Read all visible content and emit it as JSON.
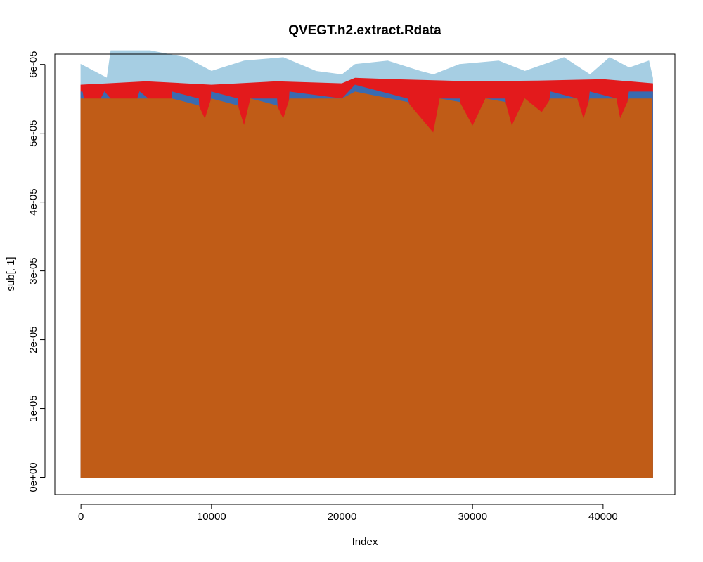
{
  "chart_data": {
    "type": "area",
    "title": "QVEGT.h2.extract.Rdata",
    "xlabel": "Index",
    "ylabel": "sub[, 1]",
    "xlim": [
      -2000,
      45500
    ],
    "ylim": [
      -2.5e-06,
      6.15e-05
    ],
    "x_ticks": [
      0,
      10000,
      20000,
      30000,
      40000
    ],
    "x_tick_labels": [
      "0",
      "10000",
      "20000",
      "30000",
      "40000"
    ],
    "y_ticks": [
      0,
      1e-05,
      2e-05,
      3e-05,
      4e-05,
      5e-05,
      6e-05
    ],
    "y_tick_labels": [
      "0e+00",
      "1e-05",
      "2e-05",
      "3e-05",
      "4e-05",
      "5e-05",
      "6e-05"
    ],
    "n_points": 43800,
    "grid": false,
    "series": [
      {
        "color": "#a6cee3",
        "x": [
          0,
          2000,
          2300,
          5300,
          8000,
          10000,
          12500,
          15500,
          18000,
          20000,
          21000,
          23500,
          26000,
          27000,
          29000,
          32000,
          34000,
          37000,
          39000,
          40500,
          42000,
          43500,
          43800
        ],
        "values": [
          6e-05,
          5.8e-05,
          6.2e-05,
          6.2e-05,
          6.1e-05,
          5.9e-05,
          6.05e-05,
          6.1e-05,
          5.9e-05,
          5.85e-05,
          6e-05,
          6.05e-05,
          5.9e-05,
          5.85e-05,
          6e-05,
          6.05e-05,
          5.9e-05,
          6.1e-05,
          5.85e-05,
          6.1e-05,
          5.95e-05,
          6.05e-05,
          5.8e-05
        ]
      },
      {
        "color": "#e31a1c",
        "x": [
          0,
          5000,
          10000,
          15000,
          20000,
          21000,
          24000,
          30000,
          35000,
          40000,
          43800
        ],
        "values": [
          5.7e-05,
          5.75e-05,
          5.7e-05,
          5.75e-05,
          5.72e-05,
          5.8e-05,
          5.78e-05,
          5.75e-05,
          5.76e-05,
          5.78e-05,
          5.72e-05
        ]
      },
      {
        "color": "#3a6bb0",
        "x": [
          0,
          100,
          500,
          850,
          1000,
          1800,
          2700,
          3000,
          3400,
          3800,
          4000,
          4500,
          5800,
          6000,
          6600,
          6800,
          7000,
          9000,
          9500,
          10000,
          12000,
          12500,
          13000,
          15000,
          15500,
          16000,
          20000,
          21000,
          25000,
          27000,
          27500,
          29000,
          30000,
          31000,
          32500,
          33000,
          34000,
          35300,
          36000,
          38000,
          38500,
          39000,
          41000,
          41300,
          42000,
          43800
        ],
        "values": [
          5.6e-05,
          5.6e-05,
          5.2e-05,
          1.5e-05,
          5.3e-05,
          5.6e-05,
          5.4e-05,
          4.5e-05,
          2.5e-05,
          1.45e-05,
          5.3e-05,
          5.6e-05,
          5.4e-05,
          4.6e-05,
          2.5e-05,
          1.5e-05,
          5.6e-05,
          5.5e-05,
          4e-05,
          5.6e-05,
          5.5e-05,
          4e-05,
          5.5e-05,
          5.5e-05,
          4e-05,
          5.6e-05,
          5.5e-05,
          5.7e-05,
          5.5e-05,
          4.4e-05,
          5.5e-05,
          5.5e-05,
          4e-05,
          5.5e-05,
          5.5e-05,
          4.2e-05,
          5.5e-05,
          4.7e-05,
          5.6e-05,
          5.5e-05,
          4.7e-05,
          5.6e-05,
          5.5e-05,
          4.6e-05,
          5.6e-05,
          5.6e-05
        ]
      },
      {
        "color": "#c05c17",
        "x": [
          0,
          600,
          1000,
          2700,
          3000,
          3800,
          4000,
          5700,
          6000,
          6800,
          7000,
          9000,
          9500,
          10000,
          12000,
          12500,
          13000,
          15000,
          15500,
          16000,
          20000,
          21000,
          25000,
          27000,
          27500,
          29000,
          30000,
          31000,
          32500,
          33000,
          34000,
          35300,
          36000,
          38000,
          38500,
          39000,
          41000,
          41300,
          42000,
          43700,
          43800
        ],
        "values": [
          5.5e-05,
          5.5e-05,
          5.5e-05,
          5.5e-05,
          5.5e-05,
          5.5e-05,
          5.5e-05,
          5.5e-05,
          5.5e-05,
          5.5e-05,
          5.5e-05,
          5.4e-05,
          5.2e-05,
          5.5e-05,
          5.4e-05,
          5.1e-05,
          5.5e-05,
          5.4e-05,
          5.2e-05,
          5.5e-05,
          5.5e-05,
          5.6e-05,
          5.45e-05,
          5e-05,
          5.5e-05,
          5.45e-05,
          5.1e-05,
          5.5e-05,
          5.45e-05,
          5.1e-05,
          5.5e-05,
          5.3e-05,
          5.5e-05,
          5.5e-05,
          5.2e-05,
          5.5e-05,
          5.5e-05,
          5.2e-05,
          5.5e-05,
          5.5e-05,
          6e-06
        ]
      }
    ]
  }
}
